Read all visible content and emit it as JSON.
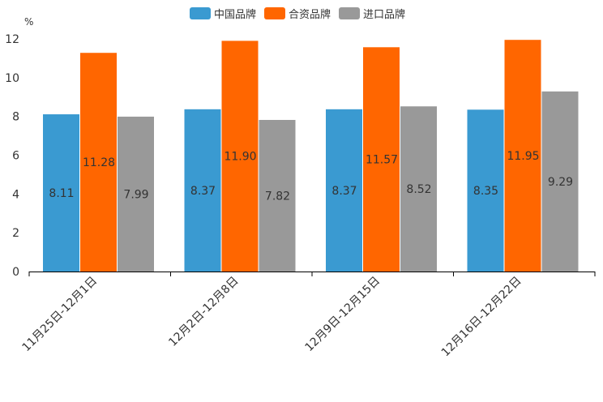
{
  "chart_data": {
    "type": "bar",
    "unit_label": "%",
    "categories": [
      "11月25日-12月1日",
      "12月2日-12月8日",
      "12月9日-12月15日",
      "12月16日-12月22日"
    ],
    "series": [
      {
        "name": "中国品牌",
        "color": "#3a9ad1",
        "values": [
          8.11,
          8.37,
          8.37,
          8.35
        ],
        "labels": [
          "8.11",
          "8.37",
          "8.37",
          "8.35"
        ]
      },
      {
        "name": "合资品牌",
        "color": "#ff6600",
        "values": [
          11.28,
          11.9,
          11.57,
          11.95
        ],
        "labels": [
          "11.28",
          "11.90",
          "11.57",
          "11.95"
        ]
      },
      {
        "name": "进口品牌",
        "color": "#999999",
        "values": [
          7.99,
          7.82,
          8.52,
          9.29
        ],
        "labels": [
          "7.99",
          "7.82",
          "8.52",
          "9.29"
        ]
      }
    ],
    "ylim": [
      0,
      12
    ],
    "yticks": [
      "0",
      "2",
      "4",
      "6",
      "8",
      "10",
      "12"
    ],
    "legend_position": "top-center",
    "grid": false
  }
}
